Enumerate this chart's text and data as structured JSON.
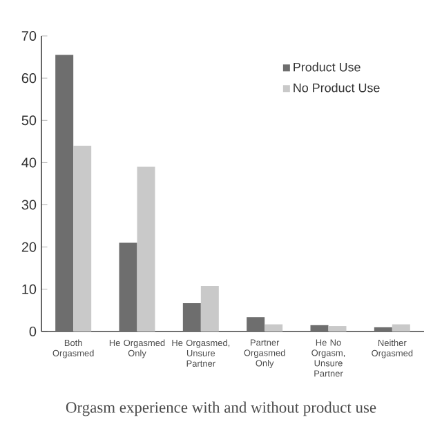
{
  "chart_data": {
    "type": "bar",
    "categories": [
      "Both Orgasmed",
      "He Orgasmed Only",
      "He Orgasmed, Unsure Partner",
      "Partner Orgasmed Only",
      "He No Orgasm, Unsure Partner",
      "Neither Orgasmed"
    ],
    "series": [
      {
        "name": "Product Use",
        "color": "#6e6e6e",
        "values": [
          65.5,
          21,
          6.7,
          3.4,
          1.5,
          1.0
        ]
      },
      {
        "name": "No Product Use",
        "color": "#c9c9c9",
        "values": [
          44,
          39,
          10.8,
          1.7,
          1.3,
          1.7
        ]
      }
    ],
    "ylim": [
      0,
      70
    ],
    "yticks": [
      0,
      10,
      20,
      30,
      40,
      50,
      60,
      70
    ],
    "legend": "top right",
    "grid": false,
    "annotations": [
      "Orgasm experience with and without product use"
    ]
  }
}
